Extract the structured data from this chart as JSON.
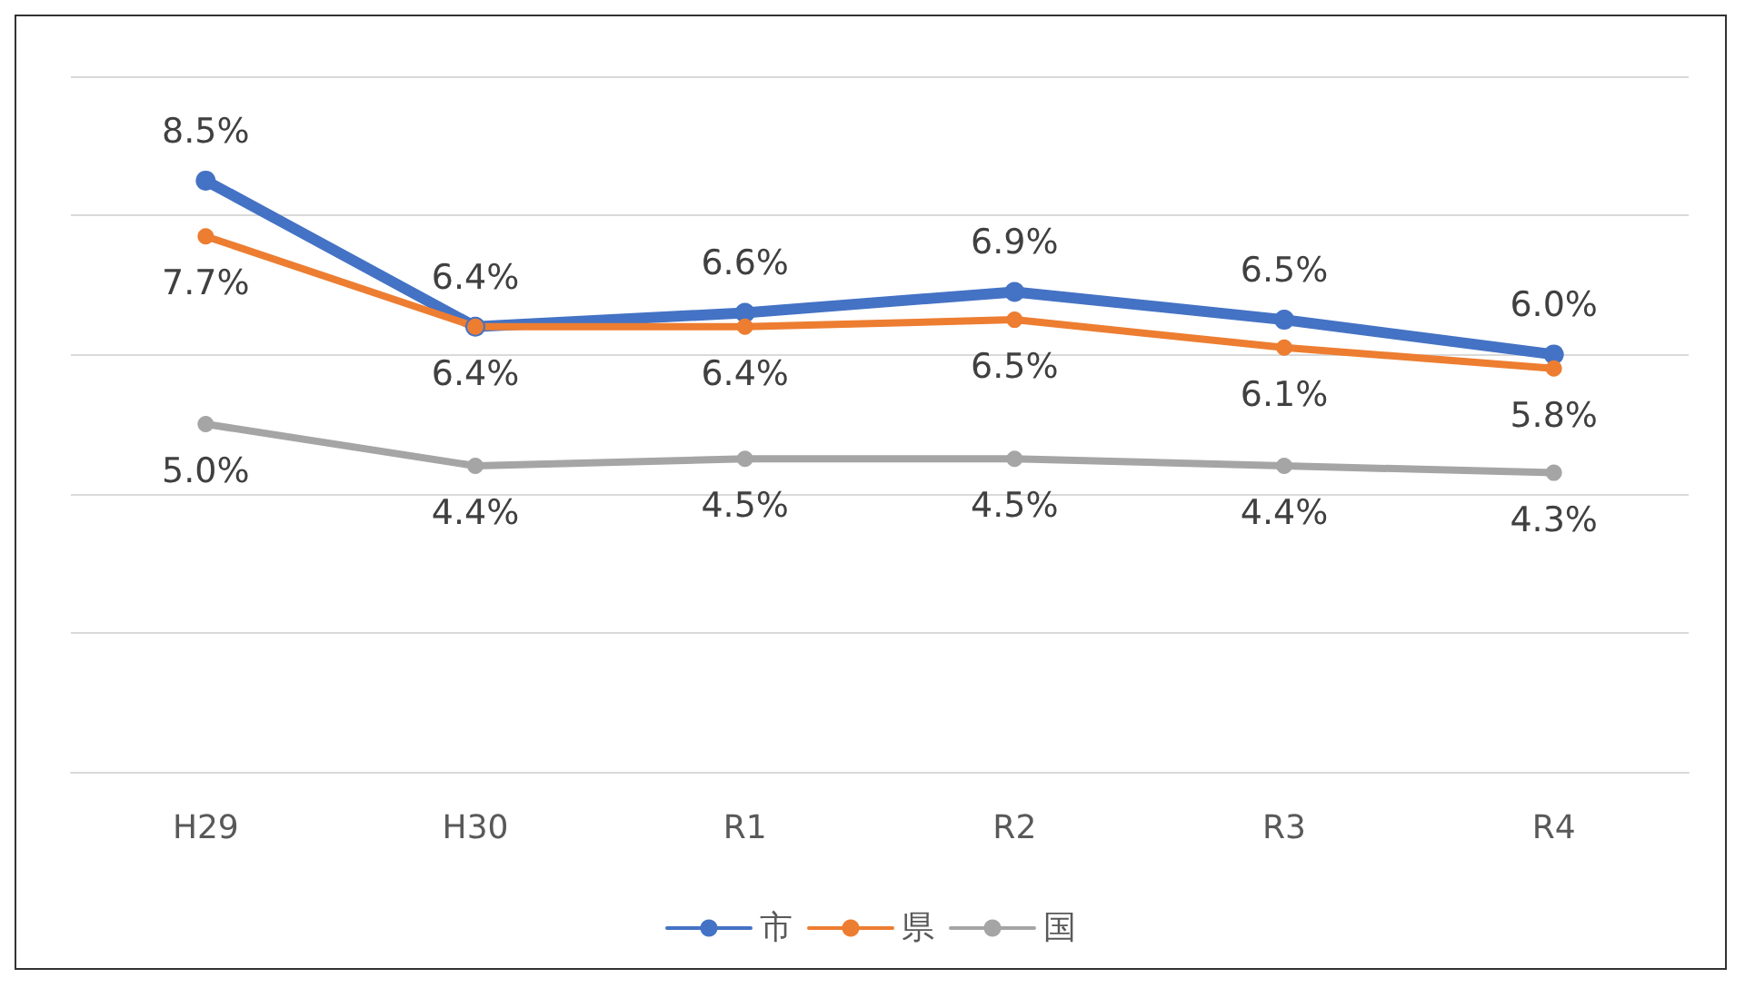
{
  "chart_data": {
    "type": "line",
    "categories": [
      "H29",
      "H30",
      "R1",
      "R2",
      "R3",
      "R4"
    ],
    "series": [
      {
        "name": "市",
        "color": "#4472c4",
        "values": [
          8.5,
          6.4,
          6.6,
          6.9,
          6.5,
          6.0
        ],
        "value_labels": [
          "8.5%",
          "6.4%",
          "6.6%",
          "6.9%",
          "6.5%",
          "6.0%"
        ]
      },
      {
        "name": "県",
        "color": "#ed7d31",
        "values": [
          7.7,
          6.4,
          6.4,
          6.5,
          6.1,
          5.8
        ],
        "value_labels": [
          "7.7%",
          "6.4%",
          "6.4%",
          "6.5%",
          "6.1%",
          "5.8%"
        ]
      },
      {
        "name": "国",
        "color": "#a5a5a5",
        "values": [
          5.0,
          4.4,
          4.5,
          4.5,
          4.4,
          4.3
        ],
        "value_labels": [
          "5.0%",
          "4.4%",
          "4.5%",
          "4.5%",
          "4.4%",
          "4.3%"
        ]
      }
    ],
    "ylim": [
      0,
      10
    ],
    "yticks": [
      0,
      2,
      4,
      6,
      8,
      10
    ],
    "tick_labels": "x",
    "grid": "y",
    "legend": "bottom",
    "marker": "circle",
    "line_style": "solid"
  }
}
